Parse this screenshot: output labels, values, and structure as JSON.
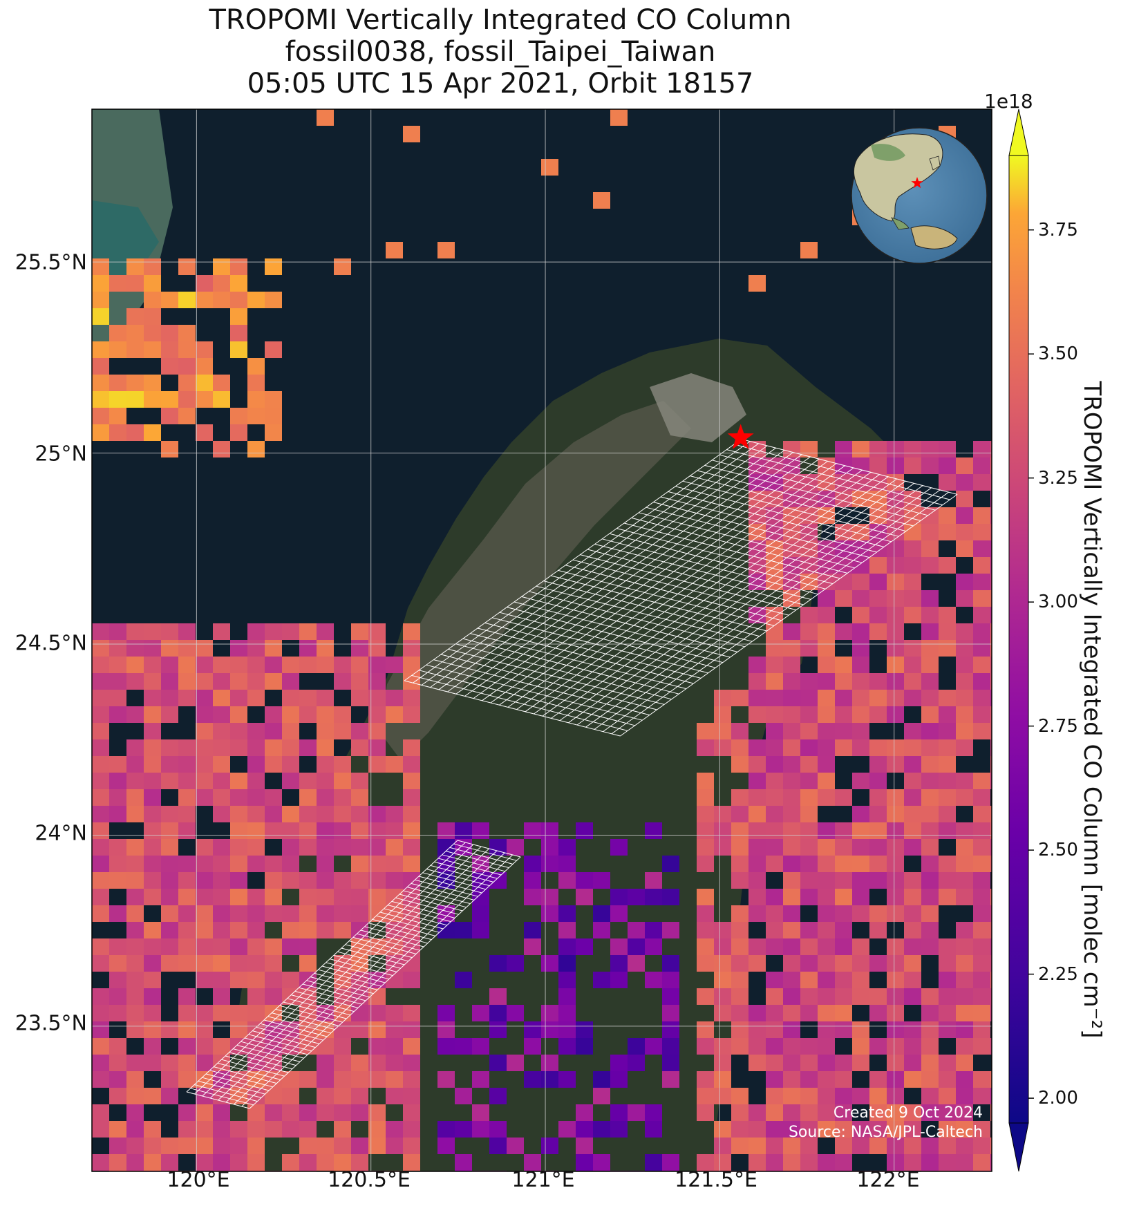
{
  "title_lines": [
    "TROPOMI Vertically Integrated CO Column",
    "fossil0038, fossil_Taipei_Taiwan",
    "05:05 UTC 15 Apr 2021, Orbit 18157"
  ],
  "x_ticks": [
    "120°E",
    "120.5°E",
    "121°E",
    "121.5°E",
    "122°E"
  ],
  "y_ticks": [
    "25.5°N",
    "25°N",
    "24.5°N",
    "24°N",
    "23.5°N"
  ],
  "colorbar": {
    "label": "TROPOMI Vertically Integrated CO Column [molec cm⁻²]",
    "exponent": "1e18",
    "ticks": [
      "2.00",
      "2.25",
      "2.50",
      "2.75",
      "3.00",
      "3.25",
      "3.50",
      "3.75"
    ],
    "range": [
      1.95,
      3.9
    ],
    "colormap": "plasma",
    "extend": "both"
  },
  "credits": [
    "Created 9 Oct 2024",
    "Source: NASA/JPL-Caltech"
  ],
  "target_marker": {
    "lon": 121.56,
    "lat": 25.04,
    "color": "#ff0000",
    "shape": "star"
  },
  "extent": {
    "lon_min": 119.7,
    "lon_max": 122.28,
    "lat_min": 23.12,
    "lat_max": 25.9
  },
  "colors": {
    "ocean": "#0f1f2d",
    "land": "#2d3b2a",
    "grid": "#d0d0d0",
    "footprint": "#ffffff"
  }
}
